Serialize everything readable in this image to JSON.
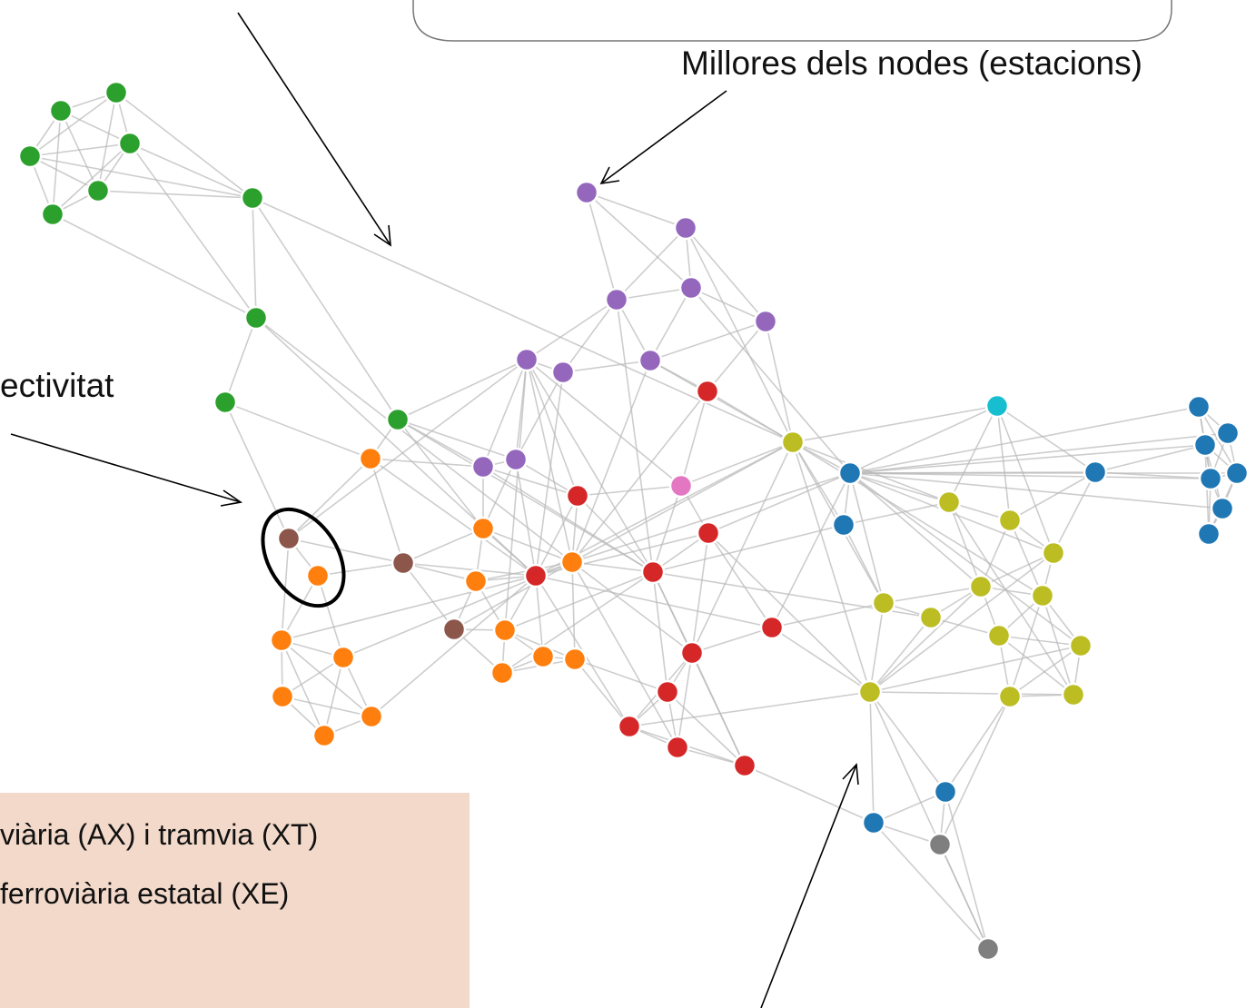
{
  "annotations": {
    "top_right": "Millores dels nodes (estacions)",
    "left": "ectivitat"
  },
  "legend": {
    "items": [
      "viària (AX) i tramvia (XT)",
      "ferroviària estatal (XE)"
    ]
  }
}
